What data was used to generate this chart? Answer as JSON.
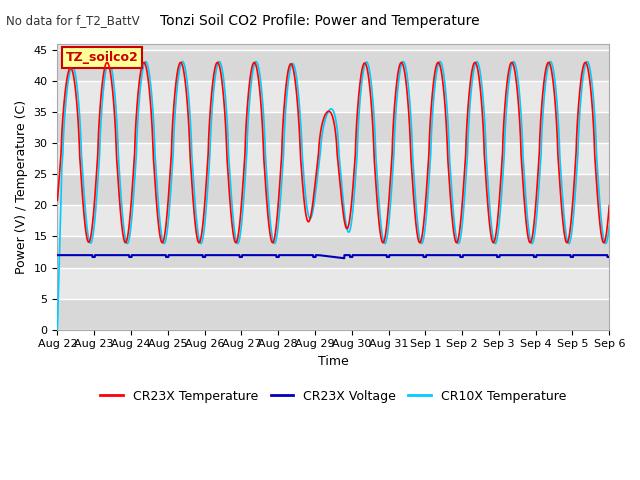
{
  "title": "Tonzi Soil CO2 Profile: Power and Temperature",
  "subtitle": "No data for f_T2_BattV",
  "ylabel": "Power (V) / Temperature (C)",
  "xlabel": "Time",
  "ylim": [
    0,
    46
  ],
  "yticks": [
    0,
    5,
    10,
    15,
    20,
    25,
    30,
    35,
    40,
    45
  ],
  "x_tick_labels": [
    "Aug 22",
    "Aug 23",
    "Aug 24",
    "Aug 25",
    "Aug 26",
    "Aug 27",
    "Aug 28",
    "Aug 29",
    "Aug 30",
    "Aug 31",
    "Sep 1",
    "Sep 2",
    "Sep 3",
    "Sep 4",
    "Sep 5",
    "Sep 6"
  ],
  "legend_labels": [
    "CR23X Temperature",
    "CR23X Voltage",
    "CR10X Temperature"
  ],
  "cr23x_temp_color": "#ff0000",
  "cr23x_volt_color": "#0000bb",
  "cr10x_temp_color": "#00ccff",
  "voltage_value": 12.0,
  "label_box_text": "TZ_soilco2",
  "label_box_color": "#ffff99",
  "label_box_text_color": "#cc0000",
  "bg_color": "#ffffff",
  "plot_bg_color": "#e0e0e0",
  "grid_color": "#ffffff",
  "n_days": 15
}
